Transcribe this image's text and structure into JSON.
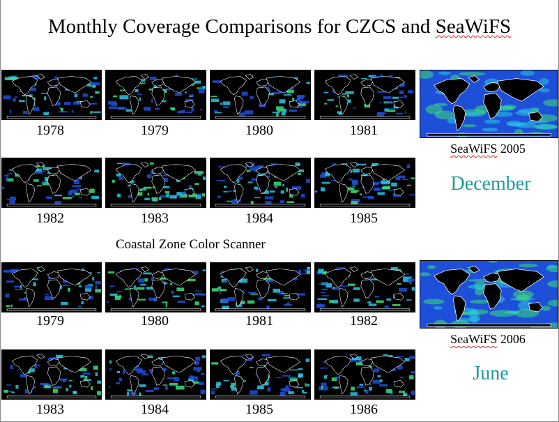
{
  "title": {
    "prefix": "Monthly Coverage Comparisons for CZCS and ",
    "seawifs": "SeaWiFS"
  },
  "czcs_label": "Coastal Zone Color Scanner",
  "december": {
    "month": "December",
    "row1_years": [
      "1978",
      "1979",
      "1980",
      "1981"
    ],
    "row2_years": [
      "1982",
      "1983",
      "1984",
      "1985"
    ],
    "seawifs_prefix": "SeaWiFS",
    "seawifs_year": "2005"
  },
  "june": {
    "month": "June",
    "row1_years": [
      "1979",
      "1980",
      "1981",
      "1982"
    ],
    "row2_years": [
      "1983",
      "1984",
      "1985",
      "1986"
    ],
    "seawifs_prefix": "SeaWiFS",
    "seawifs_year": "2006"
  },
  "colors": {
    "ocean_blue": "#1e4fd8",
    "ocean_cyan": "#28c8e8",
    "ocean_green": "#3adf7a",
    "land_outline": "#ffffff",
    "month_label": "#1f9a9a"
  }
}
